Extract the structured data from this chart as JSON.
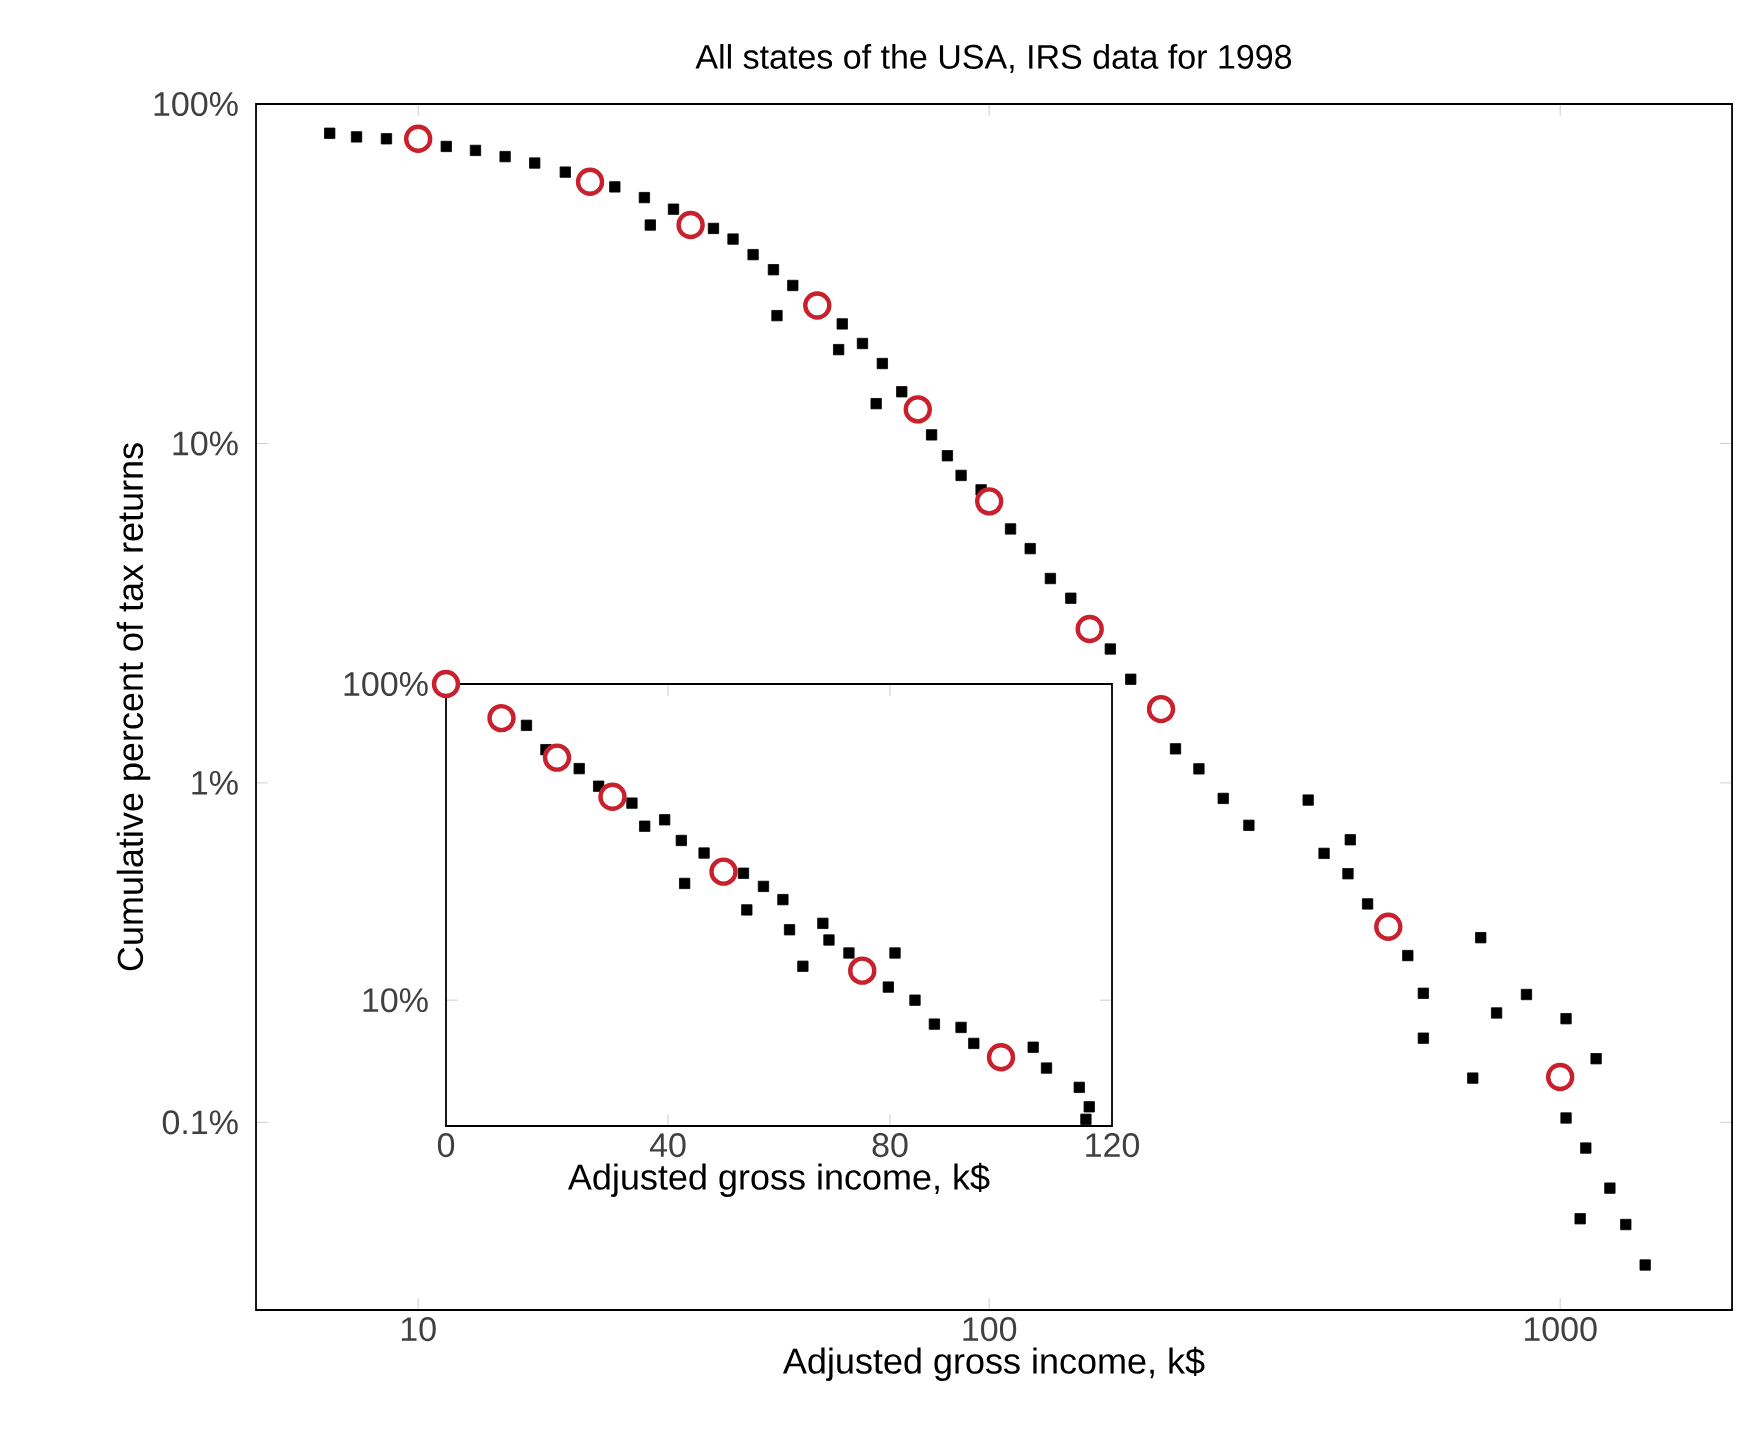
{
  "chart_data": [
    {
      "type": "scatter",
      "title": "All states of the USA, IRS data for 1998",
      "xlabel": "Adjusted gross income, k$",
      "ylabel": "Cumulative percent of tax returns",
      "log": "xy",
      "xlim": [
        5.2,
        2000
      ],
      "ylim": [
        0.028,
        100
      ],
      "xticks": [
        10,
        100,
        1000
      ],
      "yticks": [
        {
          "value": 0.1,
          "label": "0.1%"
        },
        {
          "value": 1,
          "label": "1%"
        },
        {
          "value": 10,
          "label": "10%"
        },
        {
          "value": 100,
          "label": "100%"
        }
      ],
      "series": [
        {
          "color": "#000000",
          "marker": "square",
          "x": [
            7.0,
            7.8,
            8.8,
            11.2,
            12.6,
            14.2,
            16,
            18.1,
            22.1,
            24.9,
            25.5,
            28,
            32.9,
            35.6,
            38.6,
            41.9,
            42.5,
            45.3,
            55.3,
            54.5,
            60,
            65,
            63.4,
            70.3,
            79.3,
            84.5,
            89.3,
            96.8,
            109,
            118,
            128,
            139,
            163,
            177,
            212,
            233,
            257,
            285,
            362,
            386,
            429,
            425,
            460,
            541,
            576,
            576,
            703,
            726,
            774,
            873,
            1024,
            1156,
            1222,
            1084,
            1303,
            1409,
            1024,
            1109
          ],
          "values": [
            82,
            80,
            79,
            75,
            73,
            70,
            67,
            63,
            57,
            53,
            44,
            49,
            43,
            40,
            36,
            32.5,
            23.8,
            29.2,
            22.5,
            18.9,
            19.7,
            17.2,
            13.1,
            14.2,
            10.6,
            9.2,
            8.05,
            7.3,
            5.6,
            4.9,
            4.0,
            3.5,
            2.48,
            2.02,
            1.26,
            1.1,
            0.9,
            0.75,
            0.89,
            0.62,
            0.68,
            0.54,
            0.44,
            0.31,
            0.24,
            0.177,
            0.135,
            0.35,
            0.21,
            0.238,
            0.202,
            0.154,
            0.064,
            0.052,
            0.05,
            0.038,
            0.103,
            0.084
          ]
        },
        {
          "color": "#c8202c",
          "marker": "circle",
          "x": [
            10,
            20,
            30,
            50,
            75,
            100,
            150,
            200,
            500,
            1000
          ],
          "values": [
            79,
            59,
            44,
            25.5,
            12.6,
            6.75,
            2.84,
            1.65,
            0.377,
            0.136
          ]
        }
      ]
    },
    {
      "type": "scatter",
      "xlabel": "Adjusted gross income, k$",
      "log": "y",
      "xlim": [
        0,
        120
      ],
      "ylim": [
        4,
        100
      ],
      "xticks": [
        0,
        40,
        80,
        120
      ],
      "yticks": [
        {
          "value": 10,
          "label": "10%"
        },
        {
          "value": 100,
          "label": "100%"
        }
      ],
      "series": [
        {
          "color": "#000000",
          "marker": "square",
          "x": [
            14.5,
            18,
            24,
            27.5,
            33.5,
            35.8,
            39.4,
            42.4,
            43,
            46.5,
            53.6,
            54.2,
            57.2,
            60.7,
            61.9,
            64.3,
            67.9,
            69,
            72.6,
            80.9,
            79.7,
            84.5,
            88,
            92.8,
            95.1,
            105.8,
            108.2,
            114.1,
            115.9,
            115.3
          ],
          "values": [
            74,
            62,
            54,
            47.5,
            42,
            35.5,
            37.2,
            32,
            23.4,
            29.2,
            25.2,
            19.3,
            22.9,
            20.8,
            16.7,
            12.8,
            17.5,
            15.5,
            14.1,
            14.1,
            11,
            10,
            8.4,
            8.2,
            7.3,
            7.1,
            6.1,
            5.3,
            4.6,
            4.2
          ]
        },
        {
          "color": "#c8202c",
          "marker": "circle",
          "x": [
            0,
            10,
            20,
            30,
            50,
            75,
            100
          ],
          "values": [
            100,
            78,
            58.5,
            44,
            25.5,
            12.4,
            6.6
          ]
        }
      ]
    }
  ]
}
